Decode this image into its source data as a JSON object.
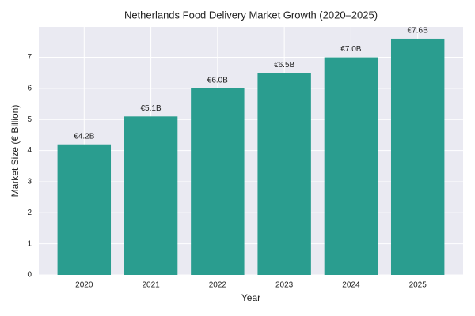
{
  "chart_data": {
    "type": "bar",
    "title": "Netherlands Food Delivery Market Growth (2020–2025)",
    "x_label": "Year",
    "y_label": "Market Size (€ Billion)",
    "categories": [
      "2020",
      "2021",
      "2022",
      "2023",
      "2024",
      "2025"
    ],
    "values": [
      4.2,
      5.1,
      6.0,
      6.5,
      7.0,
      7.6
    ],
    "value_labels": [
      "€4.2B",
      "€5.1B",
      "€6.0B",
      "€6.5B",
      "€7.0B",
      "€7.6B"
    ],
    "color": "#2a9d8f",
    "ylim": [
      0,
      7.98
    ],
    "yticks": [
      0,
      1,
      2,
      3,
      4,
      5,
      6,
      7
    ],
    "grid": true
  }
}
